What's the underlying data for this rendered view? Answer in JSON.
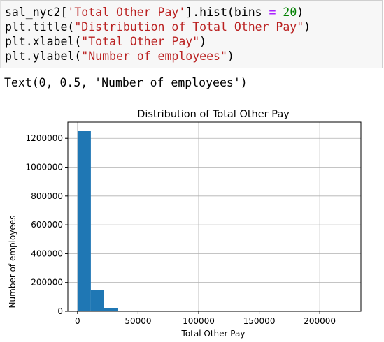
{
  "code_cell": {
    "lines": [
      [
        {
          "t": "sal_nyc2[",
          "c": ""
        },
        {
          "t": "'Total Other Pay'",
          "c": "str"
        },
        {
          "t": "].hist(bins ",
          "c": ""
        },
        {
          "t": "=",
          "c": "op"
        },
        {
          "t": " ",
          "c": ""
        },
        {
          "t": "20",
          "c": "num"
        },
        {
          "t": ")",
          "c": ""
        }
      ],
      [
        {
          "t": "plt.title(",
          "c": ""
        },
        {
          "t": "\"Distribution of Total Other Pay\"",
          "c": "str"
        },
        {
          "t": ")",
          "c": ""
        }
      ],
      [
        {
          "t": "plt.xlabel(",
          "c": ""
        },
        {
          "t": "\"Total Other Pay\"",
          "c": "str"
        },
        {
          "t": ")",
          "c": ""
        }
      ],
      [
        {
          "t": "plt.ylabel(",
          "c": ""
        },
        {
          "t": "\"Number of employees\"",
          "c": "str"
        },
        {
          "t": ")",
          "c": ""
        }
      ]
    ]
  },
  "output": {
    "text": "Text(0, 0.5, 'Number of employees')"
  },
  "colors": {
    "bar": "#1f77b4",
    "grid": "#b0b0b0",
    "string": "#ba2121",
    "number": "#008000",
    "operator": "#aa22ff"
  },
  "chart_data": {
    "type": "bar",
    "title": "Distribution of Total Other Pay",
    "xlabel": "Total Other Pay",
    "ylabel": "Number of employees",
    "bins": [
      {
        "x0": 0,
        "x1": 11000,
        "count": 1250000
      },
      {
        "x0": 11000,
        "x1": 22000,
        "count": 150000
      },
      {
        "x0": 22000,
        "x1": 33000,
        "count": 20000
      },
      {
        "x0": 33000,
        "x1": 44000,
        "count": 2500
      },
      {
        "x0": 44000,
        "x1": 55000,
        "count": 600
      }
    ],
    "xlim": [
      -8000,
      234000
    ],
    "ylim": [
      0,
      1312500
    ],
    "x_ticks": [
      0,
      50000,
      100000,
      150000,
      200000
    ],
    "x_tick_labels": [
      "0",
      "50000",
      "100000",
      "150000",
      "200000"
    ],
    "y_ticks": [
      0,
      200000,
      400000,
      600000,
      800000,
      1000000,
      1200000
    ],
    "y_tick_labels": [
      "0",
      "200000",
      "400000",
      "600000",
      "800000",
      "1000000",
      "1200000"
    ],
    "grid": true
  }
}
